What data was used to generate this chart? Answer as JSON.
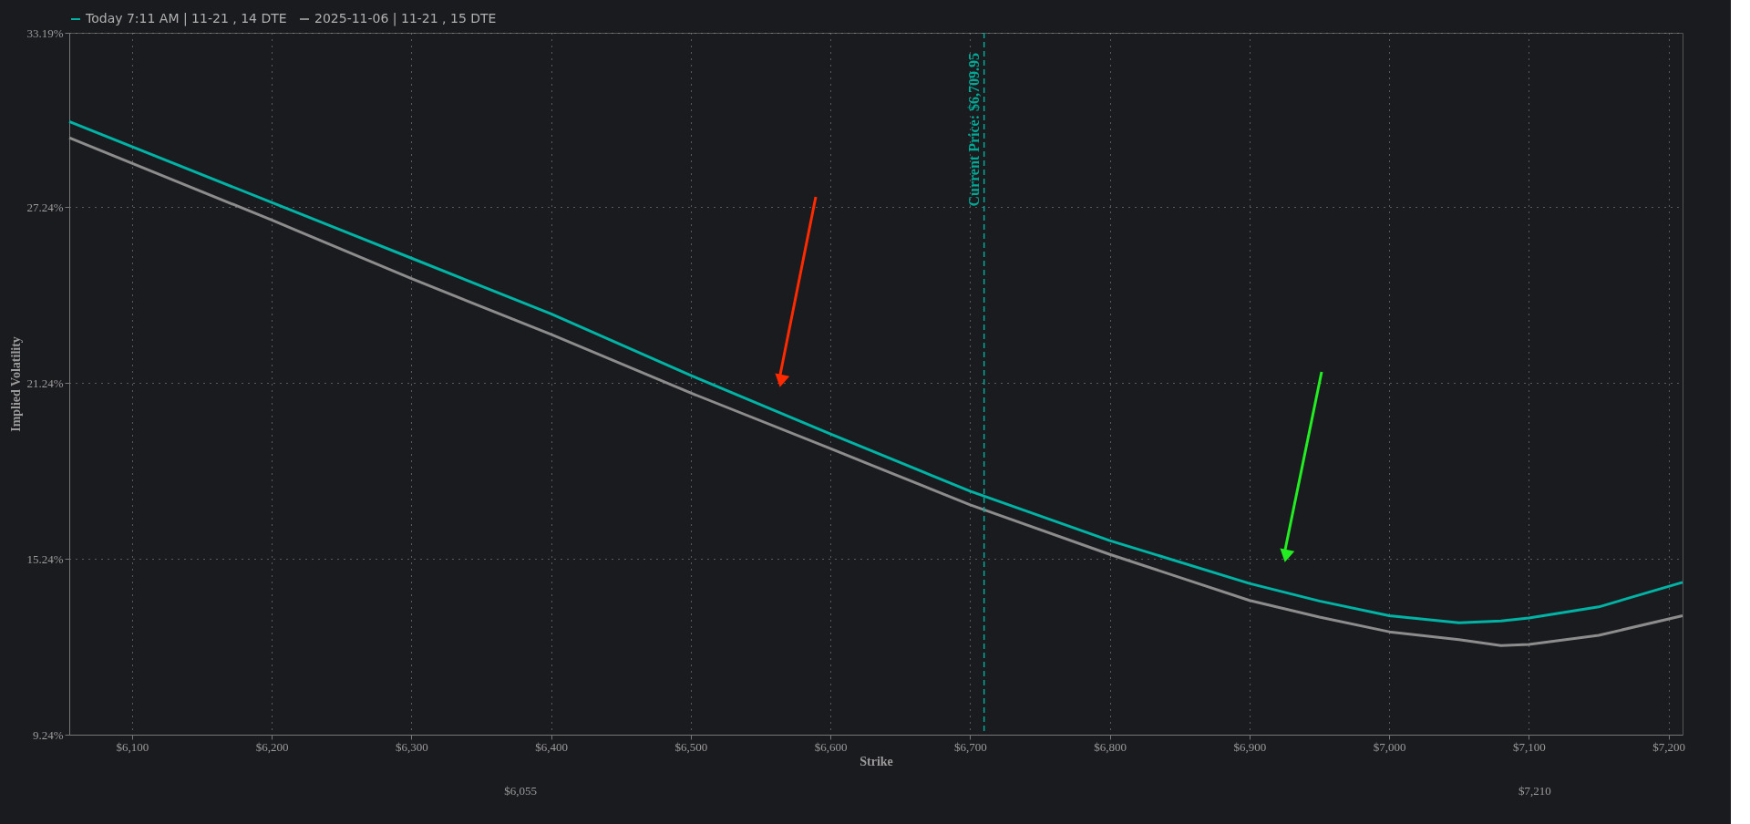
{
  "chart_data": {
    "type": "line",
    "xlabel": "Strike",
    "ylabel": "Implied Volatility",
    "x": [
      6055,
      6200,
      6300,
      6400,
      6500,
      6600,
      6700,
      6800,
      6900,
      6950,
      7000,
      7050,
      7080,
      7100,
      7150,
      7210
    ],
    "series": [
      {
        "name": "Today 7:11 AM | 11-21 , 14 DTE",
        "color": "#00b3a4",
        "values": [
          30.16,
          27.4,
          25.5,
          23.6,
          21.5,
          19.5,
          17.55,
          15.86,
          14.4,
          13.8,
          13.3,
          13.06,
          13.12,
          13.22,
          13.6,
          14.44
        ]
      },
      {
        "name": "2025-11-06 | 11-21 , 15 DTE",
        "color": "#8c8c8c",
        "values": [
          29.61,
          26.8,
          24.8,
          22.9,
          20.9,
          19.0,
          17.08,
          15.39,
          13.82,
          13.25,
          12.75,
          12.48,
          12.28,
          12.32,
          12.63,
          13.3
        ]
      }
    ],
    "xlim": [
      6055,
      7210
    ],
    "xticks": [
      {
        "value": 6100,
        "label": "$6,100"
      },
      {
        "value": 6200,
        "label": "$6,200"
      },
      {
        "value": 6300,
        "label": "$6,300"
      },
      {
        "value": 6400,
        "label": "$6,400"
      },
      {
        "value": 6500,
        "label": "$6,500"
      },
      {
        "value": 6600,
        "label": "$6,600"
      },
      {
        "value": 6700,
        "label": "$6,700"
      },
      {
        "value": 6800,
        "label": "$6,800"
      },
      {
        "value": 6900,
        "label": "$6,900"
      },
      {
        "value": 7000,
        "label": "$7,000"
      },
      {
        "value": 7100,
        "label": "$7,100"
      },
      {
        "value": 7200,
        "label": "$7,200"
      }
    ],
    "ylim": [
      9.24,
      33.19
    ],
    "yticks": [
      {
        "value": 9.24,
        "label": "9.24%"
      },
      {
        "value": 15.24,
        "label": "15.24%"
      },
      {
        "value": 21.24,
        "label": "21.24%"
      },
      {
        "value": 27.24,
        "label": "27.24%"
      },
      {
        "value": 33.19,
        "label": "33.19%"
      }
    ],
    "ref_lines": [
      {
        "axis": "x",
        "value": 6709.95,
        "label": "Current Price: $6,709.95",
        "color": "#00a896",
        "line_style": "dashed"
      }
    ],
    "annotations": [
      "$6,055",
      "$7,210"
    ],
    "grid": true,
    "legend": "top",
    "marker": "none",
    "line_style": "solid"
  }
}
